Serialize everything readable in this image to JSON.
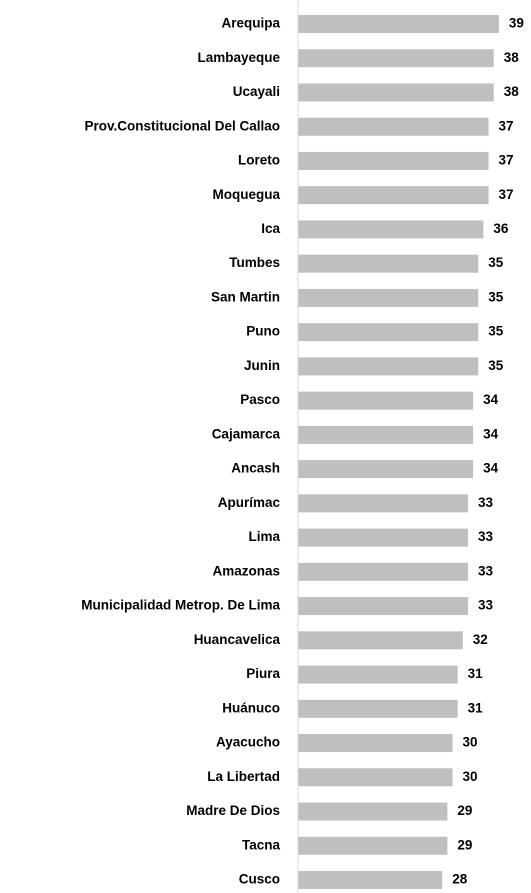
{
  "chart_data": {
    "type": "hbar",
    "categories": [
      "Arequipa",
      "Lambayeque",
      "Ucayali",
      "Prov.Constitucional Del Callao",
      "Loreto",
      "Moquegua",
      "Ica",
      "Tumbes",
      "San Martin",
      "Puno",
      "Junin",
      "Pasco",
      "Cajamarca",
      "Ancash",
      "Apurímac",
      "Lima",
      "Amazonas",
      "Municipalidad Metrop. De Lima",
      "Huancavelica",
      "Piura",
      "Huánuco",
      "Ayacucho",
      "La Libertad",
      "Madre De Dios",
      "Tacna",
      "Cusco"
    ],
    "values": [
      39,
      38,
      38,
      37,
      37,
      37,
      36,
      35,
      35,
      35,
      35,
      34,
      34,
      34,
      33,
      33,
      33,
      33,
      32,
      31,
      31,
      30,
      30,
      29,
      29,
      28
    ],
    "color": "#bfbfbf",
    "xlim": [
      0,
      40
    ]
  }
}
